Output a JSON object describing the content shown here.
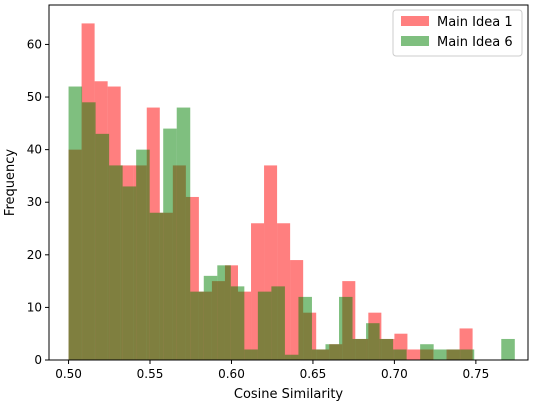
{
  "chart_data": {
    "type": "bar",
    "subtype": "overlapping-histogram",
    "xlabel": "Cosine Similarity",
    "ylabel": "Frequency",
    "xlim": [
      0.488,
      0.782
    ],
    "ylim": [
      0,
      67.5
    ],
    "xticks": [
      0.5,
      0.55,
      0.6,
      0.65,
      0.7,
      0.75
    ],
    "xtick_labels": [
      "0.50",
      "0.55",
      "0.60",
      "0.65",
      "0.70",
      "0.75"
    ],
    "yticks": [
      0,
      10,
      20,
      30,
      40,
      50,
      60
    ],
    "ytick_labels": [
      "0",
      "10",
      "20",
      "30",
      "40",
      "50",
      "60"
    ],
    "grid": false,
    "legend_position": "top-right",
    "series": [
      {
        "name": "Main Idea 1",
        "color": "#ff0000",
        "alpha": 0.5,
        "bin_start": 0.5,
        "bin_width": 0.008,
        "values": [
          40,
          64,
          53,
          52,
          37,
          37,
          48,
          28,
          37,
          31,
          13,
          15,
          18,
          13,
          26,
          37,
          26,
          19,
          9,
          2,
          3,
          15,
          4,
          9,
          4,
          5,
          2,
          2,
          0,
          2,
          6
        ]
      },
      {
        "name": "Main Idea 6",
        "color": "#008000",
        "alpha": 0.5,
        "bin_start": 0.5,
        "bin_width": 0.0083,
        "values": [
          52,
          49,
          43,
          37,
          33,
          40,
          28,
          44,
          48,
          13,
          16,
          18,
          14,
          2,
          13,
          14,
          1,
          12,
          2,
          3,
          12,
          4,
          7,
          4,
          2,
          0,
          3,
          2,
          2,
          2,
          0,
          0,
          4
        ]
      }
    ]
  }
}
